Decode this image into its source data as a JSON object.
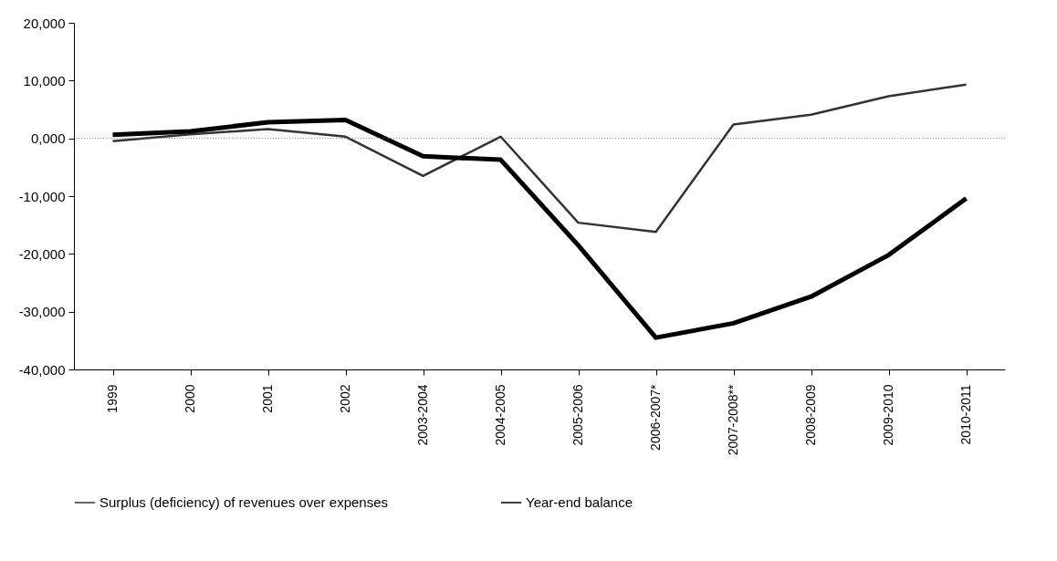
{
  "chart_data": {
    "type": "line",
    "categories": [
      "1999",
      "2000",
      "2001",
      "2002",
      "2003-2004",
      "2004-2005",
      "2005-2006",
      "2006-2007*",
      "2007-2008**",
      "2008-2009",
      "2009-2010",
      "2010-2011"
    ],
    "series": [
      {
        "name": "Surplus (deficiency) of revenues over expenses",
        "color": "#333333",
        "values": [
          -500,
          700,
          1600,
          300,
          -6500,
          300,
          -14600,
          -16200,
          2400,
          4100,
          7300,
          9300
        ]
      },
      {
        "name": "Year-end balance",
        "color": "#000000",
        "values": [
          600,
          1200,
          2800,
          3200,
          -3100,
          -3700,
          -18500,
          -34500,
          -32000,
          -27400,
          -20200,
          -10400
        ]
      }
    ],
    "ylim": [
      -40000,
      20000
    ],
    "yticks": [
      {
        "value": -40000,
        "label": "-40,000"
      },
      {
        "value": -30000,
        "label": "-30,000"
      },
      {
        "value": -20000,
        "label": "-20,000"
      },
      {
        "value": -10000,
        "label": "-10,000"
      },
      {
        "value": 0,
        "label": "0,000"
      },
      {
        "value": 10000,
        "label": "10,000"
      },
      {
        "value": 20000,
        "label": "20,000"
      }
    ],
    "ref_lines": [
      {
        "axis": "y",
        "value": 0,
        "color": "#777777",
        "line_style": "dotted"
      }
    ],
    "grid": false,
    "legend": "bottom"
  }
}
